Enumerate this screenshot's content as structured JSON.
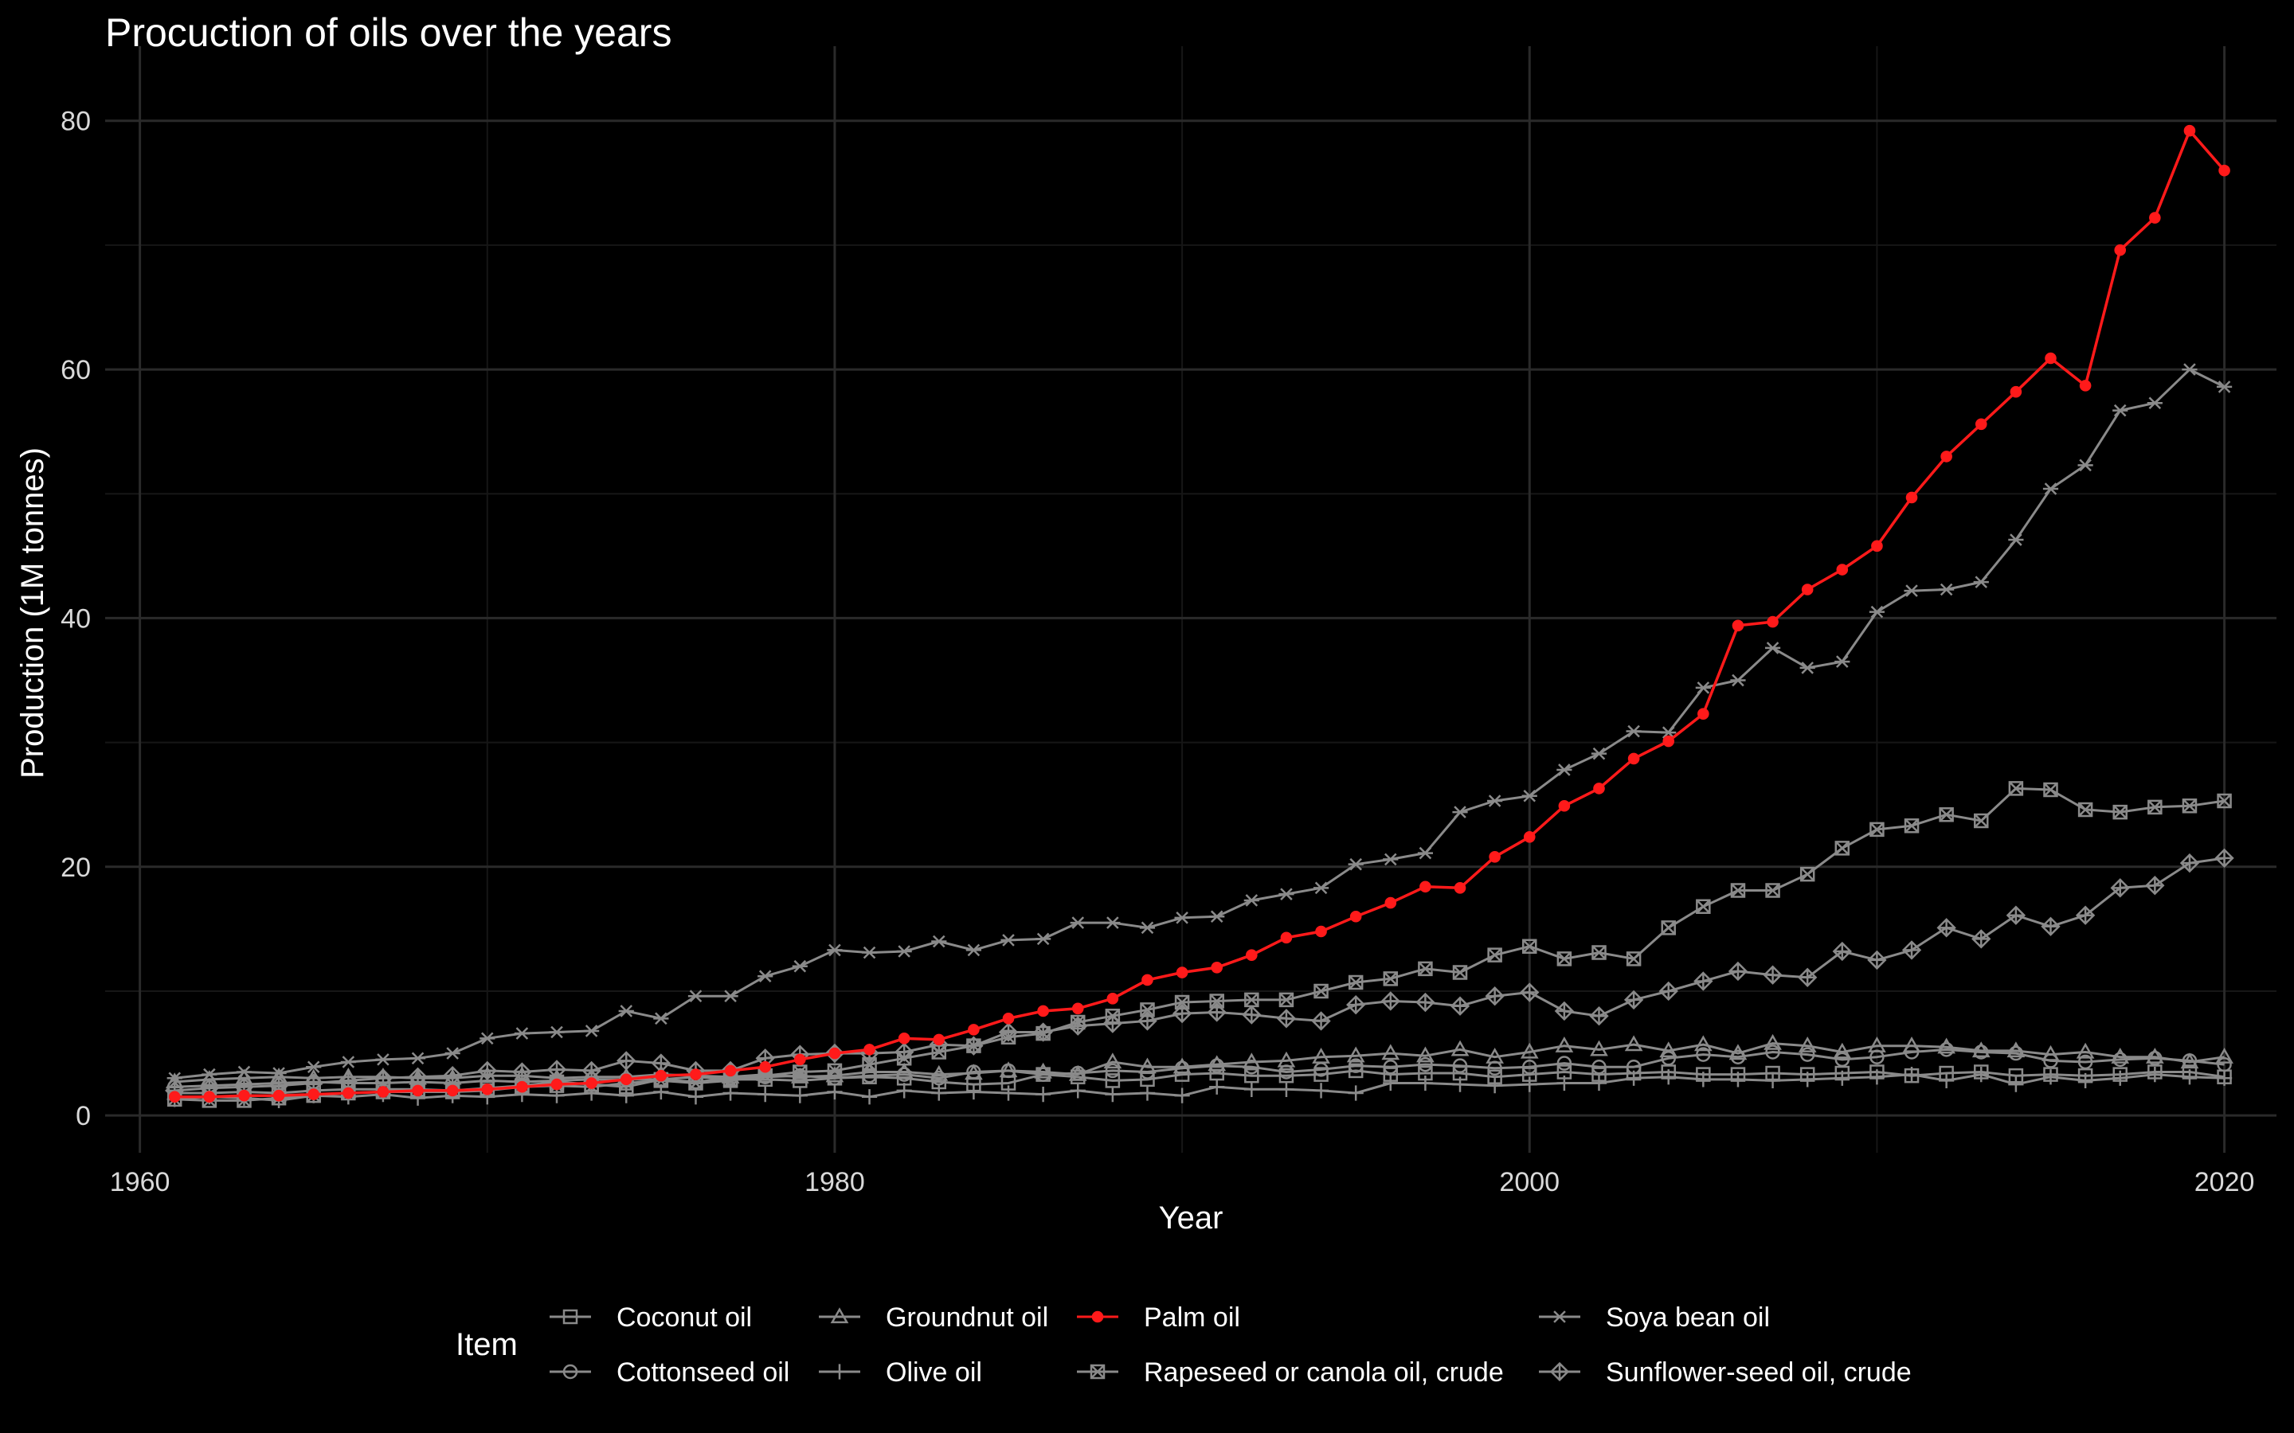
{
  "chart_data": {
    "type": "line",
    "title": "Procuction of oils over the years",
    "xlabel": "Year",
    "ylabel": "Production (1M tonnes)",
    "xlim": [
      1959,
      2021.5
    ],
    "ylim": [
      -3,
      86
    ],
    "x_ticks": [
      1960,
      1980,
      2000,
      2020
    ],
    "x_tick_labels": [
      "1960",
      "1980",
      "2000",
      "2020"
    ],
    "y_ticks": [
      0,
      20,
      40,
      60,
      80
    ],
    "y_tick_labels": [
      "0",
      "20",
      "40",
      "60",
      "80"
    ],
    "grid": true,
    "legend": {
      "title": "Item",
      "position": "bottom"
    },
    "colors": {
      "background": "#000000",
      "grid": "#2a2a2a",
      "default_series": "#8a8a8a",
      "highlight": "#ff1a1a"
    },
    "x": [
      1961,
      1962,
      1963,
      1964,
      1965,
      1966,
      1967,
      1968,
      1969,
      1970,
      1971,
      1972,
      1973,
      1974,
      1975,
      1976,
      1977,
      1978,
      1979,
      1980,
      1981,
      1982,
      1983,
      1984,
      1985,
      1986,
      1987,
      1988,
      1989,
      1990,
      1991,
      1992,
      1993,
      1994,
      1995,
      1996,
      1997,
      1998,
      1999,
      2000,
      2001,
      2002,
      2003,
      2004,
      2005,
      2006,
      2007,
      2008,
      2009,
      2010,
      2011,
      2012,
      2013,
      2014,
      2015,
      2016,
      2017,
      2018,
      2019,
      2020
    ],
    "series": [
      {
        "name": "Coconut oil",
        "marker": "square",
        "color": "#8a8a8a",
        "values": [
          1.8,
          1.8,
          1.9,
          1.8,
          2.0,
          2.1,
          2.1,
          2.1,
          2.0,
          2.2,
          2.4,
          2.7,
          2.5,
          2.3,
          2.9,
          3.1,
          2.9,
          2.9,
          2.8,
          3.0,
          3.1,
          3.0,
          2.7,
          2.5,
          2.6,
          3.3,
          3.1,
          2.8,
          2.9,
          3.3,
          3.4,
          3.2,
          3.2,
          3.3,
          3.6,
          3.3,
          3.4,
          3.4,
          3.1,
          3.3,
          3.5,
          3.3,
          3.4,
          3.5,
          3.3,
          3.3,
          3.4,
          3.3,
          3.4,
          3.5,
          3.2,
          3.4,
          3.5,
          3.2,
          3.3,
          3.2,
          3.3,
          3.5,
          3.5,
          3.1
        ]
      },
      {
        "name": "Cottonseed oil",
        "marker": "circle",
        "color": "#8a8a8a",
        "values": [
          2.3,
          2.4,
          2.5,
          2.6,
          2.7,
          2.6,
          2.6,
          2.7,
          2.6,
          2.8,
          2.7,
          2.8,
          2.9,
          2.9,
          2.9,
          2.7,
          3.0,
          3.1,
          3.2,
          3.0,
          3.2,
          3.3,
          3.0,
          3.5,
          3.6,
          3.3,
          3.4,
          3.6,
          3.5,
          3.8,
          4.0,
          3.9,
          3.5,
          3.7,
          4.0,
          3.9,
          4.1,
          4.0,
          3.8,
          3.9,
          4.2,
          3.9,
          3.9,
          4.6,
          4.9,
          4.7,
          5.1,
          4.9,
          4.5,
          4.7,
          5.1,
          5.3,
          5.1,
          5.0,
          4.4,
          4.3,
          4.5,
          4.6,
          4.4,
          4.1
        ]
      },
      {
        "name": "Groundnut oil",
        "marker": "triangle",
        "color": "#8a8a8a",
        "values": [
          2.7,
          2.9,
          3.0,
          3.1,
          3.0,
          3.1,
          3.1,
          3.0,
          3.0,
          3.2,
          3.2,
          3.0,
          3.1,
          3.1,
          3.3,
          3.2,
          3.1,
          3.3,
          3.1,
          3.2,
          3.5,
          3.5,
          3.3,
          3.4,
          3.6,
          3.5,
          3.3,
          4.3,
          3.9,
          3.9,
          4.1,
          4.3,
          4.4,
          4.7,
          4.8,
          5.0,
          4.8,
          5.3,
          4.7,
          5.1,
          5.6,
          5.3,
          5.7,
          5.2,
          5.7,
          5.0,
          5.8,
          5.6,
          5.1,
          5.6,
          5.6,
          5.5,
          5.2,
          5.2,
          4.9,
          5.1,
          4.7,
          4.7,
          4.3,
          4.7
        ]
      },
      {
        "name": "Olive oil",
        "marker": "plus",
        "color": "#8a8a8a",
        "values": [
          1.3,
          1.5,
          1.4,
          1.2,
          1.6,
          1.5,
          1.7,
          1.4,
          1.6,
          1.5,
          1.7,
          1.6,
          1.8,
          1.6,
          1.9,
          1.5,
          1.8,
          1.7,
          1.6,
          1.9,
          1.5,
          2.0,
          1.8,
          1.9,
          1.8,
          1.7,
          2.0,
          1.7,
          1.8,
          1.6,
          2.3,
          2.1,
          2.1,
          2.0,
          1.8,
          2.6,
          2.6,
          2.5,
          2.4,
          2.5,
          2.6,
          2.6,
          3.0,
          3.1,
          2.9,
          2.9,
          2.8,
          2.9,
          3.0,
          3.1,
          3.3,
          2.8,
          3.3,
          2.5,
          3.1,
          2.8,
          3.0,
          3.3,
          3.1,
          3.0
        ]
      },
      {
        "name": "Palm oil",
        "marker": "circle-filled",
        "color": "#ff1a1a",
        "highlight": true,
        "values": [
          1.5,
          1.5,
          1.6,
          1.6,
          1.7,
          1.8,
          1.9,
          2.0,
          2.0,
          2.1,
          2.3,
          2.5,
          2.6,
          2.9,
          3.2,
          3.3,
          3.6,
          3.9,
          4.5,
          5.0,
          5.3,
          6.2,
          6.1,
          6.9,
          7.8,
          8.4,
          8.6,
          9.4,
          10.9,
          11.5,
          11.9,
          12.9,
          14.3,
          14.8,
          16.0,
          17.1,
          18.4,
          18.3,
          20.8,
          22.4,
          24.9,
          26.3,
          28.7,
          30.1,
          32.3,
          39.4,
          39.7,
          42.3,
          43.9,
          45.8,
          49.7,
          53.0,
          55.6,
          58.2,
          60.9,
          58.7,
          69.6,
          72.2,
          79.2,
          76.0
        ]
      },
      {
        "name": "Rapeseed or canola oil, crude",
        "marker": "square-x",
        "color": "#8a8a8a",
        "values": [
          1.3,
          1.2,
          1.2,
          1.4,
          1.6,
          1.8,
          1.9,
          1.9,
          1.9,
          2.0,
          2.3,
          2.4,
          2.3,
          2.6,
          2.8,
          2.6,
          2.8,
          3.2,
          3.5,
          3.6,
          4.1,
          4.6,
          5.1,
          5.6,
          6.3,
          6.6,
          7.5,
          8.0,
          8.5,
          9.1,
          9.2,
          9.3,
          9.3,
          10.0,
          10.7,
          11.0,
          11.8,
          11.5,
          12.9,
          13.6,
          12.6,
          13.1,
          12.6,
          15.1,
          16.8,
          18.1,
          18.1,
          19.4,
          21.5,
          23.0,
          23.3,
          24.2,
          23.7,
          26.3,
          26.2,
          24.6,
          24.4,
          24.8,
          24.9,
          25.3
        ]
      },
      {
        "name": "Soya bean oil",
        "marker": "asterisk",
        "color": "#8a8a8a",
        "values": [
          3.0,
          3.3,
          3.5,
          3.4,
          3.9,
          4.3,
          4.5,
          4.6,
          5.0,
          6.2,
          6.6,
          6.7,
          6.8,
          8.4,
          7.8,
          9.6,
          9.6,
          11.2,
          12.0,
          13.3,
          13.1,
          13.2,
          14.0,
          13.3,
          14.1,
          14.2,
          15.5,
          15.5,
          15.1,
          15.9,
          16.0,
          17.3,
          17.8,
          18.3,
          20.2,
          20.6,
          21.1,
          24.4,
          25.3,
          25.7,
          27.8,
          29.1,
          30.9,
          30.8,
          34.4,
          35.0,
          37.6,
          36.0,
          36.5,
          40.5,
          42.2,
          42.3,
          42.9,
          46.3,
          50.4,
          52.3,
          56.7,
          57.3,
          60.0,
          58.6
        ]
      },
      {
        "name": "Sunflower-seed oil, crude",
        "marker": "diamond",
        "color": "#8a8a8a",
        "values": [
          2.0,
          2.2,
          2.3,
          2.4,
          2.6,
          2.8,
          3.0,
          3.1,
          3.2,
          3.6,
          3.5,
          3.7,
          3.6,
          4.4,
          4.2,
          3.6,
          3.6,
          4.6,
          4.9,
          5.0,
          5.0,
          5.1,
          5.7,
          5.6,
          6.7,
          6.7,
          7.2,
          7.4,
          7.6,
          8.2,
          8.3,
          8.1,
          7.8,
          7.6,
          8.9,
          9.2,
          9.1,
          8.8,
          9.6,
          9.9,
          8.4,
          8.0,
          9.3,
          10.0,
          10.8,
          11.6,
          11.3,
          11.1,
          13.2,
          12.5,
          13.3,
          15.1,
          14.2,
          16.1,
          15.2,
          16.1,
          18.3,
          18.5,
          20.3,
          20.7
        ]
      }
    ]
  }
}
